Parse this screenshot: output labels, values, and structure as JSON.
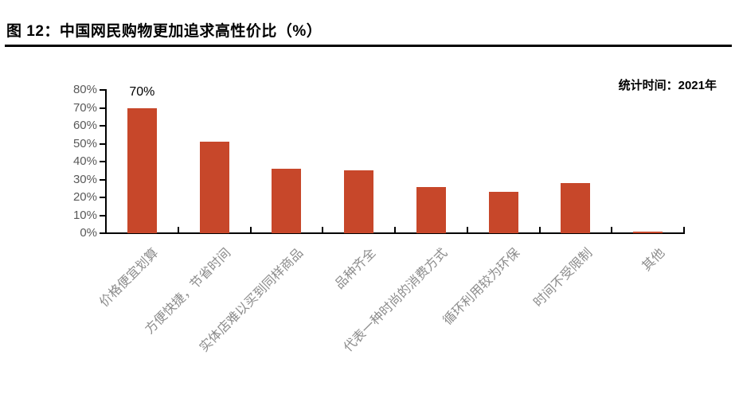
{
  "figure": {
    "title": "图 12：中国网民购物更加追求高性价比（%）",
    "annotation": "统计时间：2021年"
  },
  "chart_data": {
    "type": "bar",
    "title": "图 12：中国网民购物更加追求高性价比（%）",
    "annotation": "统计时间：2021年",
    "categories": [
      "价格便宜划算",
      "方便快捷，节省时间",
      "实体店难以买到同样商品",
      "品种齐全",
      "代表一种时尚的消费方式",
      "循环利用较为环保",
      "时间不受限制",
      "其他"
    ],
    "values": [
      70,
      51,
      36,
      35,
      26,
      23,
      28,
      1
    ],
    "unit": "%",
    "xlabel": "",
    "ylabel": "",
    "ylim": [
      0,
      80
    ],
    "ytick_step": 10,
    "ytick_labels": [
      "0%",
      "10%",
      "20%",
      "30%",
      "40%",
      "50%",
      "60%",
      "70%",
      "80%"
    ],
    "data_labels": [
      {
        "index": 0,
        "text": "70%"
      }
    ],
    "grid": false,
    "legend": null,
    "colors": {
      "bar": "#C7472A",
      "axis": "#000000",
      "ytick_label": "#595959",
      "xtick_label": "#8C8C8C",
      "title": "#000000",
      "annotation": "#000000"
    }
  }
}
